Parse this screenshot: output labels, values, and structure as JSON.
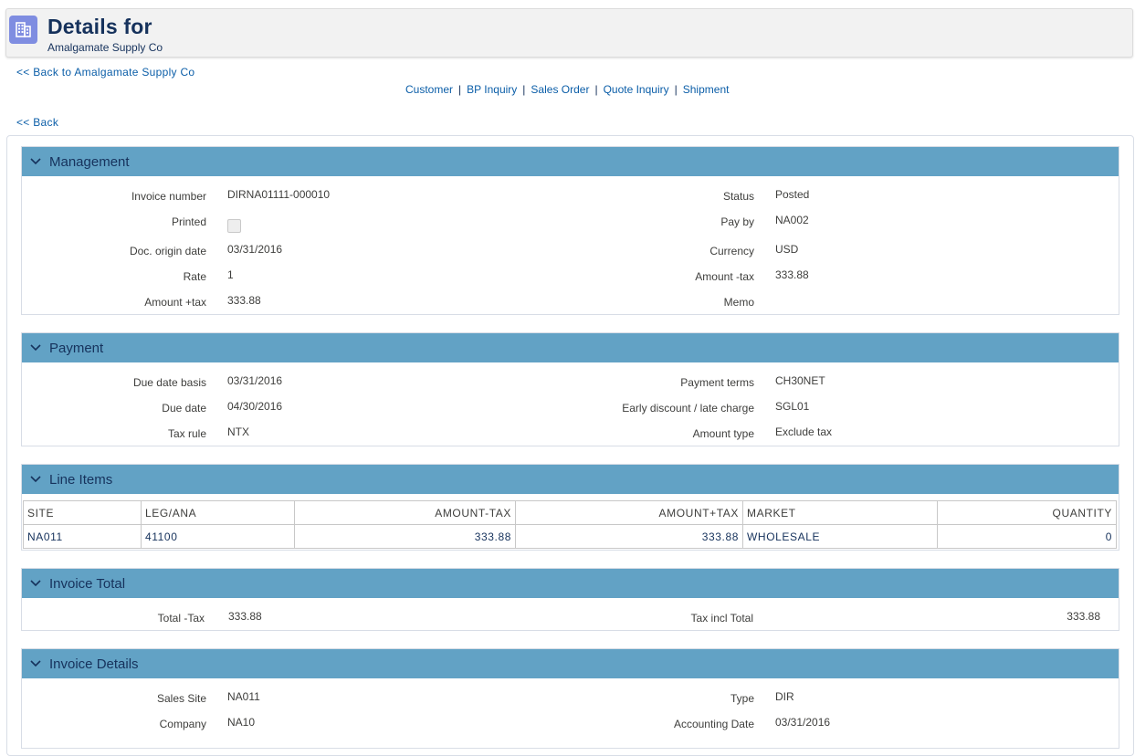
{
  "header": {
    "title": "Details for",
    "subtitle": "Amalgamate Supply Co",
    "icon": "building-icon"
  },
  "nav": {
    "back_to_customer": "<< Back to Amalgamate Supply Co",
    "back": "<< Back",
    "links": [
      "Customer",
      "BP Inquiry",
      "Sales Order",
      "Quote Inquiry",
      "Shipment"
    ],
    "separator": "|"
  },
  "management": {
    "title": "Management",
    "invoice_number_label": "Invoice number",
    "invoice_number": "DIRNA01111-000010",
    "printed_label": "Printed",
    "doc_origin_date_label": "Doc. origin date",
    "doc_origin_date": "03/31/2016",
    "rate_label": "Rate",
    "rate": "1",
    "amount_tax_incl_label": "Amount +tax",
    "amount_tax_incl": "333.88",
    "status_label": "Status",
    "status": "Posted",
    "pay_by_label": "Pay by",
    "pay_by": "NA002",
    "currency_label": "Currency",
    "currency": "USD",
    "amount_tax_excl_label": "Amount -tax",
    "amount_tax_excl": "333.88",
    "memo_label": "Memo"
  },
  "payment": {
    "title": "Payment",
    "due_date_basis_label": "Due date basis",
    "due_date_basis": "03/31/2016",
    "due_date_label": "Due date",
    "due_date": "04/30/2016",
    "tax_rule_label": "Tax rule",
    "tax_rule": "NTX",
    "payment_terms_label": "Payment terms",
    "payment_terms": "CH30NET",
    "early_discount_label": "Early discount / late charge",
    "early_discount": "SGL01",
    "amount_type_label": "Amount type",
    "amount_type": "Exclude tax"
  },
  "line_items": {
    "title": "Line Items",
    "columns": [
      "SITE",
      "LEG/ANA",
      "AMOUNT-TAX",
      "AMOUNT+TAX",
      "MARKET",
      "QUANTITY"
    ],
    "rows": [
      [
        "NA011",
        "41100",
        "333.88",
        "333.88",
        "WHOLESALE",
        "0"
      ]
    ]
  },
  "invoice_total": {
    "title": "Invoice Total",
    "total_tax_excl_label": "Total -Tax",
    "total_tax_excl": "333.88",
    "tax_incl_total_label": "Tax incl Total",
    "tax_incl_total": "333.88"
  },
  "invoice_details": {
    "title": "Invoice Details",
    "sales_site_label": "Sales Site",
    "sales_site": "NA011",
    "company_label": "Company",
    "company": "NA10",
    "type_label": "Type",
    "type": "DIR",
    "accounting_date_label": "Accounting Date",
    "accounting_date": "03/31/2016"
  },
  "colors": {
    "section_header": "#62a2c5",
    "title_text": "#16325c",
    "link": "#0b5ea8",
    "icon_bg": "#7f8de1"
  }
}
